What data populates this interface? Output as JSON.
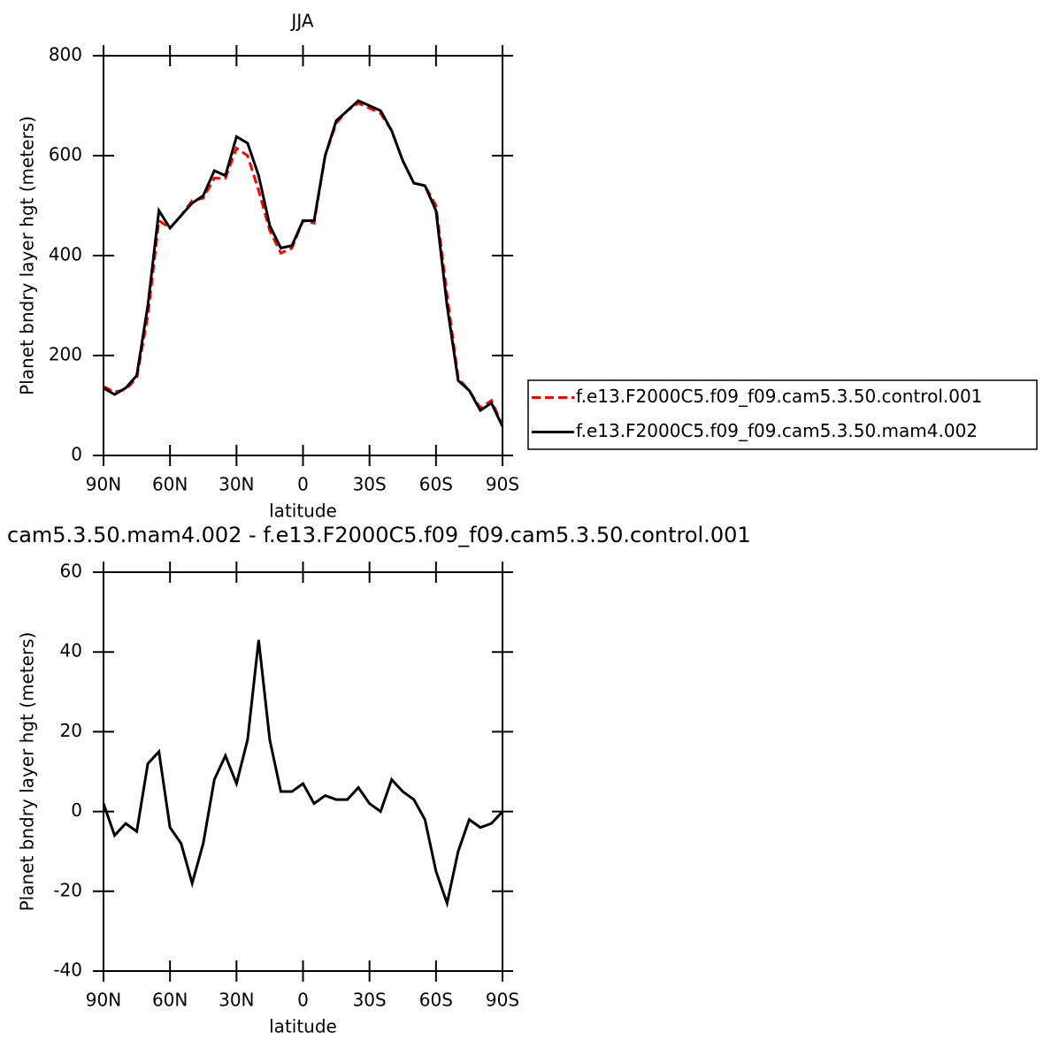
{
  "chart_data": [
    {
      "type": "line",
      "title": "JJA",
      "xlabel": "latitude",
      "ylabel": "Planet bndry layer hgt (meters)",
      "x": [
        90,
        85,
        80,
        75,
        70,
        65,
        60,
        55,
        50,
        45,
        40,
        35,
        30,
        25,
        20,
        15,
        10,
        5,
        0,
        -5,
        -10,
        -15,
        -20,
        -25,
        -30,
        -35,
        -40,
        -45,
        -50,
        -55,
        -60,
        -65,
        -70,
        -75,
        -80,
        -85,
        -90
      ],
      "series": [
        {
          "name": "f.e13.F2000C5.f09_f09.cam5.3.50.control.001",
          "color": "#ff0000",
          "dash": true,
          "values": [
            138,
            127,
            132,
            155,
            280,
            470,
            455,
            480,
            510,
            515,
            555,
            555,
            615,
            600,
            530,
            450,
            405,
            415,
            470,
            465,
            600,
            665,
            690,
            705,
            695,
            685,
            650,
            590,
            545,
            540,
            500,
            320,
            155,
            130,
            95,
            110,
            60
          ]
        },
        {
          "name": "f.e13.F2000C5.f09_f09.cam5.3.50.mam4.002",
          "color": "#000000",
          "dash": false,
          "values": [
            135,
            122,
            135,
            160,
            300,
            490,
            455,
            480,
            505,
            520,
            570,
            560,
            638,
            625,
            560,
            460,
            415,
            420,
            470,
            470,
            600,
            670,
            690,
            710,
            700,
            690,
            650,
            590,
            545,
            540,
            490,
            300,
            150,
            130,
            90,
            105,
            58
          ]
        }
      ],
      "xlim": [
        90,
        -90
      ],
      "xticks": [
        {
          "value": 90,
          "label": "90N"
        },
        {
          "value": 60,
          "label": "60N"
        },
        {
          "value": 30,
          "label": "30N"
        },
        0,
        {
          "value": -30,
          "label": "30S"
        },
        {
          "value": -60,
          "label": "60S"
        },
        {
          "value": -90,
          "label": "90S"
        }
      ],
      "ylim": [
        0,
        800
      ],
      "yticks": [
        0,
        200,
        400,
        600,
        800
      ],
      "legend": "right"
    },
    {
      "type": "line",
      "title": "cam5.3.50.mam4.002 - f.e13.F2000C5.f09_f09.cam5.3.50.control.001",
      "xlabel": "latitude",
      "ylabel": "Planet bndry layer hgt (meters)",
      "x": [
        90,
        85,
        80,
        75,
        70,
        65,
        60,
        55,
        50,
        45,
        40,
        35,
        30,
        25,
        20,
        15,
        10,
        5,
        0,
        -5,
        -10,
        -15,
        -20,
        -25,
        -30,
        -35,
        -40,
        -45,
        -50,
        -55,
        -60,
        -65,
        -70,
        -75,
        -80,
        -85,
        -90
      ],
      "values": [
        2,
        -6,
        -3,
        -5,
        12,
        15,
        -4,
        -8,
        -18,
        -8,
        8,
        14,
        7,
        18,
        43,
        18,
        5,
        5,
        7,
        2,
        4,
        3,
        3,
        6,
        2,
        0,
        8,
        5,
        3,
        -2,
        -15,
        -23,
        -10,
        -2,
        -4,
        -3,
        0
      ],
      "color": "#000000",
      "xlim": [
        90,
        -90
      ],
      "xticks": [
        {
          "value": 90,
          "label": "90N"
        },
        {
          "value": 60,
          "label": "60N"
        },
        {
          "value": 30,
          "label": "30N"
        },
        0,
        {
          "value": -30,
          "label": "30S"
        },
        {
          "value": -60,
          "label": "60S"
        },
        {
          "value": -90,
          "label": "90S"
        }
      ],
      "ylim": [
        -40,
        60
      ],
      "yticks": [
        -40,
        -20,
        0,
        20,
        40,
        60
      ]
    }
  ]
}
